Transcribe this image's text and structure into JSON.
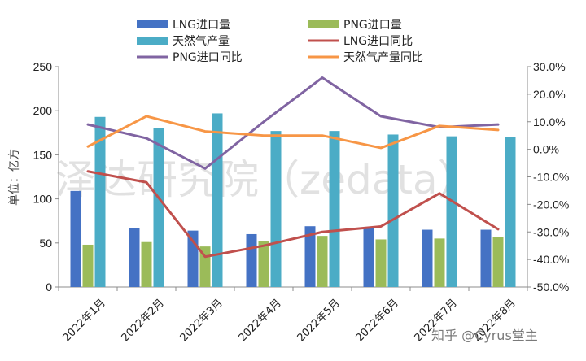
{
  "chart_data": {
    "type": "bar",
    "categories": [
      "2022年1月",
      "2022年2月",
      "2022年3月",
      "2022年4月",
      "2022年5月",
      "2022年6月",
      "2022年7月",
      "2022年8月"
    ],
    "ylabel": "单位：亿方",
    "ylim": [
      0,
      250
    ],
    "y_ticks": [
      "0",
      "50",
      "100",
      "150",
      "200",
      "250"
    ],
    "y2lim": [
      -50,
      30
    ],
    "y2_ticks": [
      "-50.0%",
      "-40.0%",
      "-30.0%",
      "-20.0%",
      "-10.0%",
      "0.0%",
      "10.0%",
      "20.0%",
      "30.0%"
    ],
    "grid": false,
    "legend_position": "top",
    "series": [
      {
        "name": "LNG进口量",
        "kind": "bar",
        "axis": "left",
        "color": "#4472c4",
        "values": [
          109,
          67,
          64,
          60,
          69,
          67,
          65,
          65
        ]
      },
      {
        "name": "PNG进口量",
        "kind": "bar",
        "axis": "left",
        "color": "#9bbb59",
        "values": [
          48,
          51,
          46,
          52,
          58,
          54,
          55,
          57
        ]
      },
      {
        "name": "天然气产量",
        "kind": "bar",
        "axis": "left",
        "color": "#4bacc6",
        "values": [
          193,
          180,
          197,
          177,
          177,
          173,
          171,
          170
        ]
      },
      {
        "name": "LNG进口同比",
        "kind": "line",
        "axis": "right",
        "color": "#c0504d",
        "values": [
          -8,
          -12,
          -39,
          -35,
          -30,
          -28,
          -16,
          -29
        ]
      },
      {
        "name": "PNG进口同比",
        "kind": "line",
        "axis": "right",
        "color": "#8064a2",
        "values": [
          9,
          4,
          -7,
          10,
          26,
          12,
          8,
          9
        ]
      },
      {
        "name": "天然气产量同比",
        "kind": "line",
        "axis": "right",
        "color": "#f79646",
        "values": [
          1,
          12,
          6.5,
          5,
          5,
          0.5,
          8.5,
          7
        ]
      }
    ]
  },
  "watermark": "泽达研究院（zedata）",
  "credit": "知乎 @Cyrus堂主"
}
